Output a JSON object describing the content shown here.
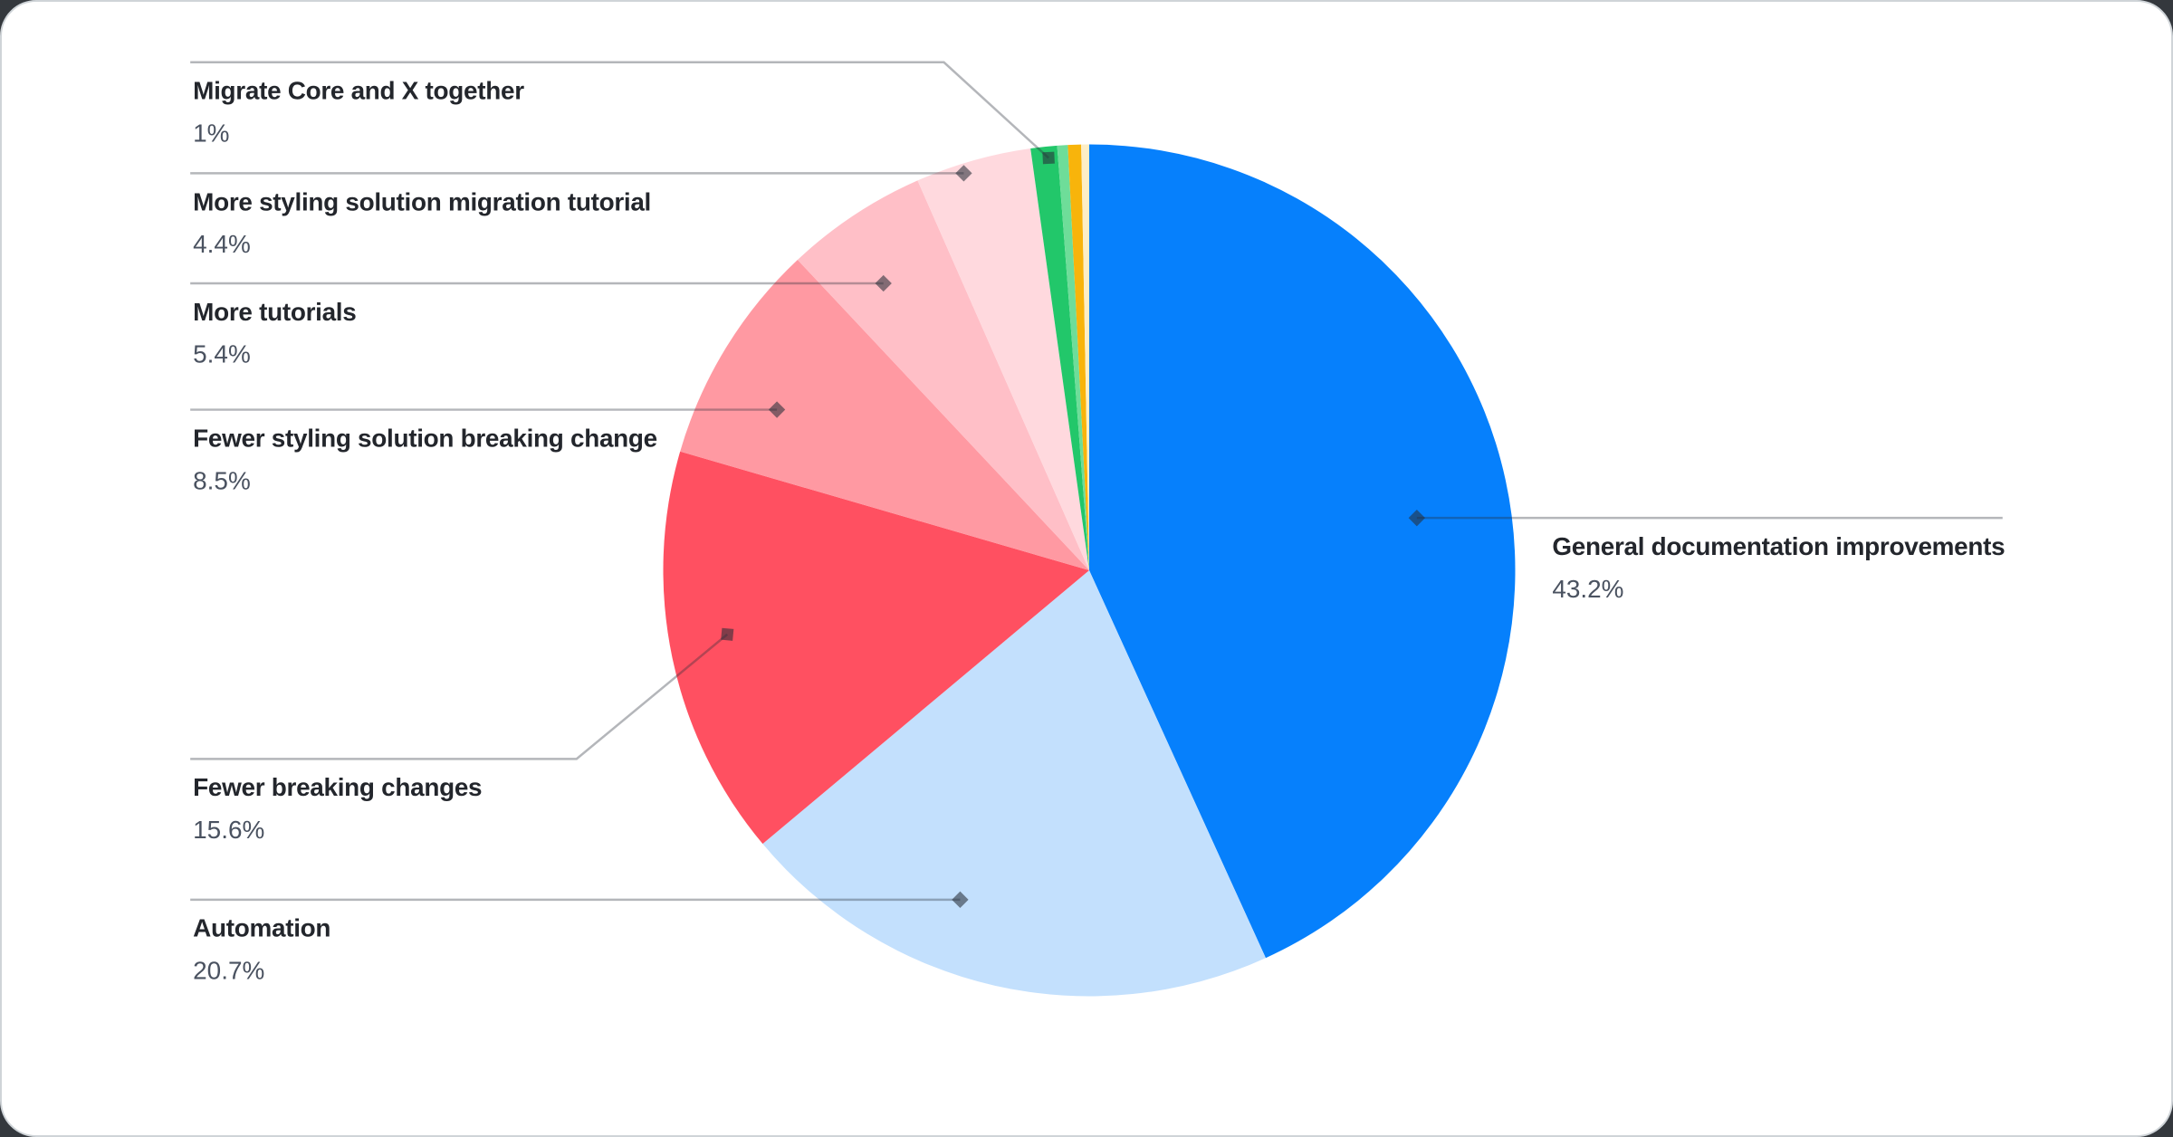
{
  "chart_data": {
    "type": "pie",
    "title": "",
    "legend_position": "callouts",
    "direction": "clockwise",
    "start_angle_deg": 0,
    "slices": [
      {
        "label": "General documentation improvements",
        "value": 43.2,
        "percent_label": "43.2%",
        "color": "#0680fc"
      },
      {
        "label": "Automation",
        "value": 20.7,
        "percent_label": "20.7%",
        "color": "#c3e0fd"
      },
      {
        "label": "Fewer breaking changes",
        "value": 15.6,
        "percent_label": "15.6%",
        "color": "#ff5061"
      },
      {
        "label": "Fewer styling solution breaking change",
        "value": 8.5,
        "percent_label": "8.5%",
        "color": "#ff99a2"
      },
      {
        "label": "More tutorials",
        "value": 5.4,
        "percent_label": "5.4%",
        "color": "#ffbfc7"
      },
      {
        "label": "More styling solution migration tutorial",
        "value": 4.4,
        "percent_label": "4.4%",
        "color": "#ffd9de"
      },
      {
        "label": "Migrate Core and X together",
        "value": 1.0,
        "percent_label": "1%",
        "color": "#22c76a"
      },
      {
        "label": "",
        "value": 0.4,
        "percent_label": "",
        "color": "#6edd99"
      },
      {
        "label": "",
        "value": 0.5,
        "percent_label": "",
        "color": "#f8b40b"
      },
      {
        "label": "",
        "value": 0.3,
        "percent_label": "",
        "color": "#fdeec6"
      }
    ],
    "colors": {
      "label_text": "#23262c",
      "percent_text": "#4a5260",
      "leader_line": "rgba(40,46,56,0.35)",
      "marker": "rgba(40,46,56,0.58)",
      "card_background": "#ffffff"
    }
  }
}
